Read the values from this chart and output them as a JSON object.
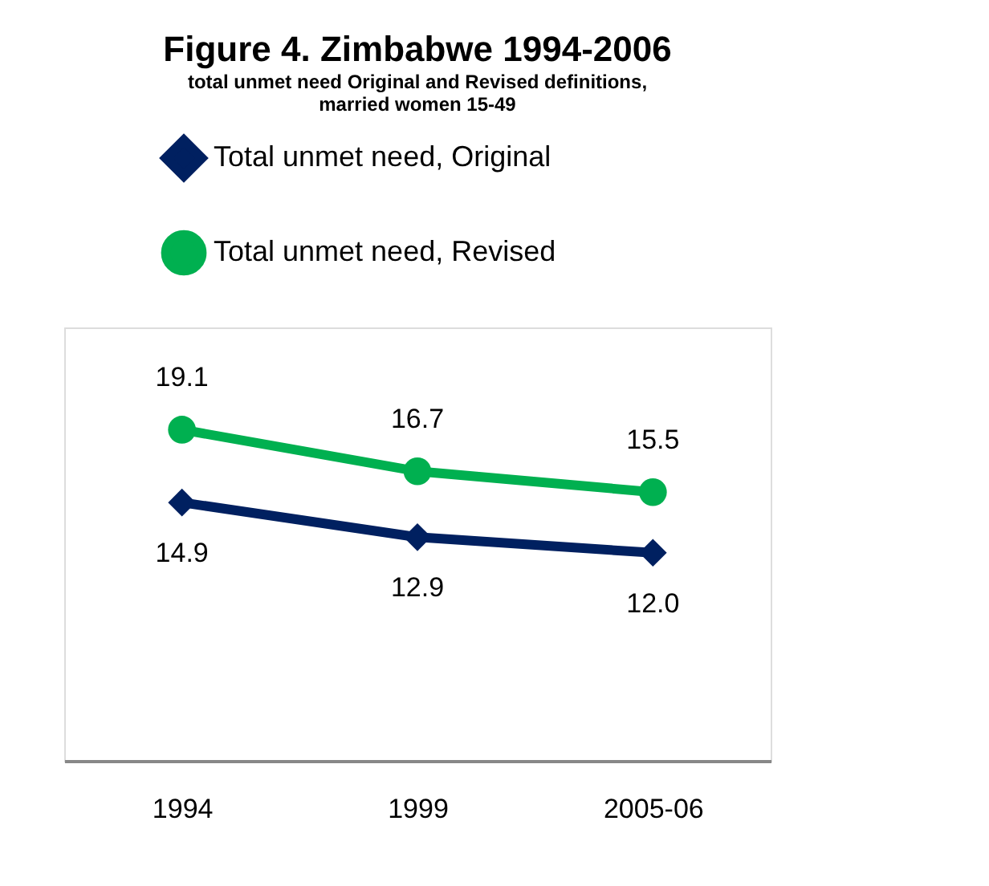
{
  "chart_data": {
    "type": "line",
    "title": "Figure 4. Zimbabwe 1994-2006",
    "subtitle": "total unmet need Original and Revised definitions,\nmarried women 15-49",
    "categories": [
      "1994",
      "1999",
      "2005-06"
    ],
    "series": [
      {
        "name": "Total unmet need, Original",
        "color": "#002060",
        "marker": "diamond",
        "values": [
          14.9,
          12.9,
          12.0
        ],
        "value_labels": [
          "14.9",
          "12.9",
          "12.0"
        ]
      },
      {
        "name": "Total unmet need, Revised",
        "color": "#00b050",
        "marker": "circle",
        "values": [
          19.1,
          16.7,
          15.5
        ],
        "value_labels": [
          "19.1",
          "16.7",
          "15.5"
        ]
      }
    ],
    "ylim": [
      0,
      25
    ],
    "tick_labels": "x",
    "legend": "top",
    "grid": false,
    "line_style": "solid"
  }
}
